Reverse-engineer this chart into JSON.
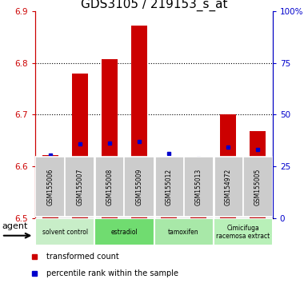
{
  "title": "GDS3105 / 219153_s_at",
  "samples": [
    "GSM155006",
    "GSM155007",
    "GSM155008",
    "GSM155009",
    "GSM155012",
    "GSM155013",
    "GSM154972",
    "GSM155005"
  ],
  "bar_tops": [
    6.622,
    6.779,
    6.808,
    6.873,
    6.607,
    6.582,
    6.7,
    6.668
  ],
  "bar_bottom": 6.5,
  "blue_markers": [
    6.621,
    6.644,
    6.645,
    6.648,
    6.624,
    6.616,
    6.637,
    6.633
  ],
  "ylim_left": [
    6.5,
    6.9
  ],
  "ylim_right": [
    0,
    100
  ],
  "yticks_left": [
    6.5,
    6.6,
    6.7,
    6.8,
    6.9
  ],
  "yticks_right": [
    0,
    25,
    50,
    75,
    100
  ],
  "ytick_labels_right": [
    "0",
    "25",
    "50",
    "75",
    "100%"
  ],
  "bar_color": "#cc0000",
  "marker_color": "#0000cc",
  "groups": [
    {
      "label": "solvent control",
      "samples": [
        0,
        1
      ],
      "bg": "#c8eec8"
    },
    {
      "label": "estradiol",
      "samples": [
        2,
        3
      ],
      "bg": "#70dc70"
    },
    {
      "label": "tamoxifen",
      "samples": [
        4,
        5
      ],
      "bg": "#a8e8a8"
    },
    {
      "label": "Cimicifuga\nracemosa extract",
      "samples": [
        6,
        7
      ],
      "bg": "#b8f0b8"
    }
  ],
  "legend_red": "transformed count",
  "legend_blue": "percentile rank within the sample",
  "agent_label": "agent",
  "sample_bg": "#cccccc",
  "title_fontsize": 11,
  "axis_label_color_left": "#cc0000",
  "axis_label_color_right": "#0000cc"
}
